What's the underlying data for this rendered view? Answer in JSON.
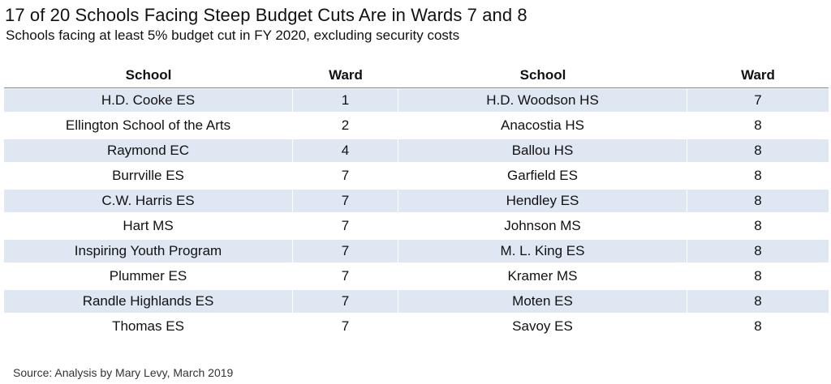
{
  "title": "17 of 20 Schools Facing Steep Budget Cuts Are in Wards 7 and 8",
  "subtitle": "Schools facing at least 5% budget cut in FY 2020, excluding security costs",
  "table": {
    "headers": [
      "School",
      "Ward",
      "School",
      "Ward"
    ],
    "rows": [
      [
        "H.D. Cooke ES",
        "1",
        "H.D. Woodson HS",
        "7"
      ],
      [
        "Ellington School of the Arts",
        "2",
        "Anacostia HS",
        "8"
      ],
      [
        "Raymond EC",
        "4",
        "Ballou HS",
        "8"
      ],
      [
        "Burrville ES",
        "7",
        "Garfield ES",
        "8"
      ],
      [
        "C.W. Harris ES",
        "7",
        "Hendley ES",
        "8"
      ],
      [
        "Hart MS",
        "7",
        "Johnson MS",
        "8"
      ],
      [
        "Inspiring Youth Program",
        "7",
        "M. L. King ES",
        "8"
      ],
      [
        "Plummer ES",
        "7",
        "Kramer MS",
        "8"
      ],
      [
        "Randle Highlands ES",
        "7",
        "Moten ES",
        "8"
      ],
      [
        "Thomas ES",
        "7",
        "Savoy ES",
        "8"
      ]
    ],
    "shaded_row_color": "#dfe7f3",
    "header_rule_color": "#7f7f7f"
  },
  "source": "Source: Analysis by Mary Levy, March 2019"
}
